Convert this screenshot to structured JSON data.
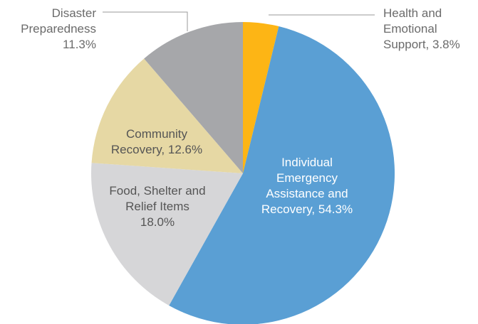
{
  "chart_data": {
    "type": "pie",
    "title": "",
    "start_angle_deg": 0,
    "direction": "clockwise",
    "slices": [
      {
        "label": "Health and Emotional Support, 3.8%",
        "label_lines": [
          "Health and",
          "Emotional",
          "Support, 3.8%"
        ],
        "value": 3.8,
        "color": "#FDB515",
        "label_color": "#6b6b6b",
        "label_position": "outside-right"
      },
      {
        "label": "Individual Emergency Assistance and Recovery, 54.3%",
        "label_lines": [
          "Individual",
          "Emergency",
          "Assistance and",
          "Recovery, 54.3%"
        ],
        "value": 54.3,
        "color": "#5A9FD4",
        "label_color": "#ffffff",
        "label_position": "inside"
      },
      {
        "label": "Food, Shelter and Relief Items 18.0%",
        "label_lines": [
          "Food, Shelter and",
          "Relief Items",
          "18.0%"
        ],
        "value": 18.0,
        "color": "#D6D6D8",
        "label_color": "#555555",
        "label_position": "inside"
      },
      {
        "label": "Community Recovery, 12.6%",
        "label_lines": [
          "Community",
          "Recovery, 12.6%"
        ],
        "value": 12.6,
        "color": "#E6D8A4",
        "label_color": "#555555",
        "label_position": "inside"
      },
      {
        "label": "Disaster Preparedness 11.3%",
        "label_lines": [
          "Disaster",
          "Preparedness",
          "11.3%"
        ],
        "value": 11.3,
        "color": "#A6A7AA",
        "label_color": "#6b6b6b",
        "label_position": "outside-left"
      }
    ]
  }
}
